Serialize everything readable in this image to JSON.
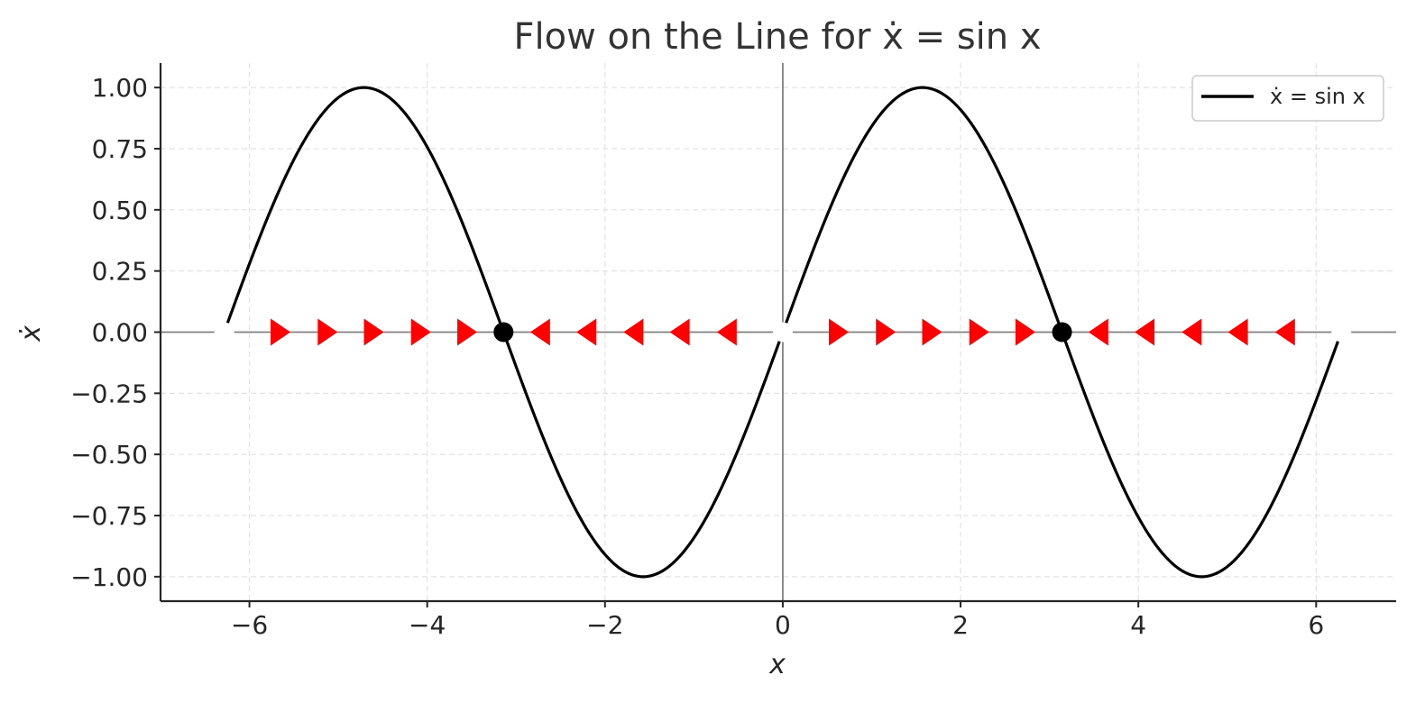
{
  "chart_data": {
    "type": "line",
    "title": "Flow on the Line for ẋ = sin x",
    "xlabel": "x",
    "ylabel": "ẋ",
    "xlim": [
      -7,
      6.9
    ],
    "ylim": [
      -1.1,
      1.1
    ],
    "x_ticks": [
      -6,
      -4,
      -2,
      0,
      2,
      4,
      6
    ],
    "x_tick_labels": [
      "−6",
      "−4",
      "−2",
      "0",
      "2",
      "4",
      "6"
    ],
    "y_ticks": [
      1.0,
      0.75,
      0.5,
      0.25,
      0.0,
      -0.25,
      -0.5,
      -0.75,
      -1.0
    ],
    "y_tick_labels": [
      "1.00",
      "0.75",
      "0.50",
      "0.25",
      "0.00",
      "−0.25",
      "−0.50",
      "−0.75",
      "−1.00"
    ],
    "grid": true,
    "legend_position": "top-right",
    "series": [
      {
        "name": "ẋ = sin x",
        "function": "sin",
        "x_range": [
          -6.2832,
          6.2832
        ],
        "color": "#000000"
      }
    ],
    "fixed_points": {
      "stable": [
        -3.1416,
        3.1416
      ],
      "unstable": [
        -6.2832,
        0,
        6.2832
      ],
      "stable_color": "#000000",
      "unstable_color": "#ffffff"
    },
    "flow_arrows": [
      {
        "x": -5.65,
        "direction": "right"
      },
      {
        "x": -5.12,
        "direction": "right"
      },
      {
        "x": -4.6,
        "direction": "right"
      },
      {
        "x": -4.07,
        "direction": "right"
      },
      {
        "x": -3.55,
        "direction": "right"
      },
      {
        "x": -2.73,
        "direction": "left"
      },
      {
        "x": -2.21,
        "direction": "left"
      },
      {
        "x": -1.68,
        "direction": "left"
      },
      {
        "x": -1.16,
        "direction": "left"
      },
      {
        "x": -0.63,
        "direction": "left"
      },
      {
        "x": 0.63,
        "direction": "right"
      },
      {
        "x": 1.16,
        "direction": "right"
      },
      {
        "x": 1.68,
        "direction": "right"
      },
      {
        "x": 2.21,
        "direction": "right"
      },
      {
        "x": 2.73,
        "direction": "right"
      },
      {
        "x": 3.55,
        "direction": "left"
      },
      {
        "x": 4.07,
        "direction": "left"
      },
      {
        "x": 4.6,
        "direction": "left"
      },
      {
        "x": 5.12,
        "direction": "left"
      },
      {
        "x": 5.65,
        "direction": "left"
      }
    ],
    "arrow_color": "#ff0000",
    "reference_lines_color": "#808080"
  }
}
